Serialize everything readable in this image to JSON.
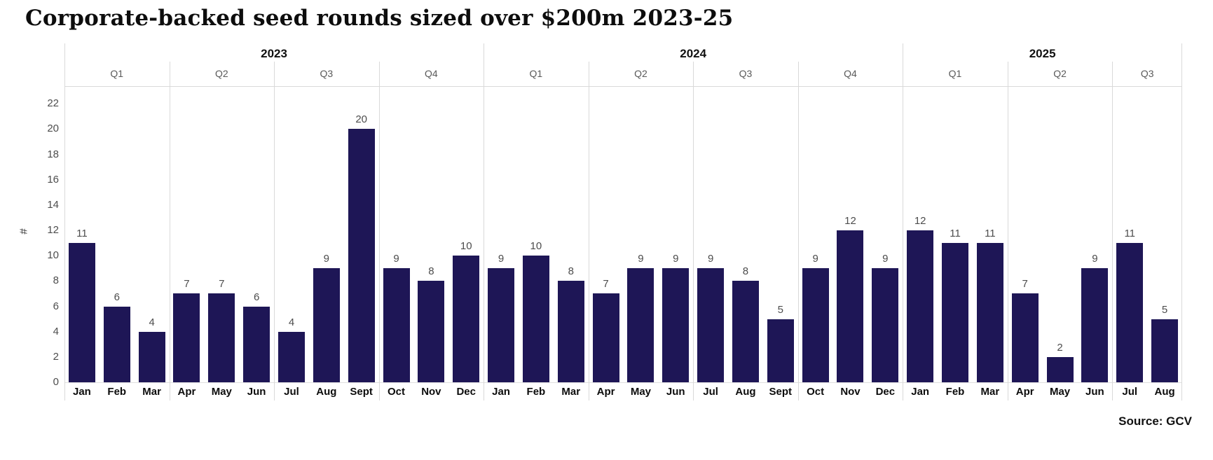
{
  "title": "Corporate-backed seed rounds sized over $200m 2023-25",
  "source": "Source: GCV",
  "chart_data": {
    "type": "bar",
    "title": "Corporate-backed seed rounds sized over $200m 2023-25",
    "xlabel": "",
    "ylabel": "#",
    "ylim": [
      0,
      23.4
    ],
    "yticks": [
      0,
      2,
      4,
      6,
      8,
      10,
      12,
      14,
      16,
      18,
      20,
      22
    ],
    "grid": "vertical-quarter-dividers-only",
    "legend": "none",
    "bar_color": "#1e1656",
    "divider_color": "#d9d9d9",
    "groups": [
      {
        "year": "2023",
        "quarters": [
          {
            "label": "Q1",
            "months": [
              "Jan",
              "Feb",
              "Mar"
            ],
            "values": [
              11,
              6,
              4
            ]
          },
          {
            "label": "Q2",
            "months": [
              "Apr",
              "May",
              "Jun"
            ],
            "values": [
              7,
              7,
              6
            ]
          },
          {
            "label": "Q3",
            "months": [
              "Jul",
              "Aug",
              "Sept"
            ],
            "values": [
              4,
              9,
              20
            ]
          },
          {
            "label": "Q4",
            "months": [
              "Oct",
              "Nov",
              "Dec"
            ],
            "values": [
              9,
              8,
              10
            ]
          }
        ]
      },
      {
        "year": "2024",
        "quarters": [
          {
            "label": "Q1",
            "months": [
              "Jan",
              "Feb",
              "Mar"
            ],
            "values": [
              9,
              10,
              8
            ]
          },
          {
            "label": "Q2",
            "months": [
              "Apr",
              "May",
              "Jun"
            ],
            "values": [
              7,
              9,
              9
            ]
          },
          {
            "label": "Q3",
            "months": [
              "Jul",
              "Aug",
              "Sept"
            ],
            "values": [
              9,
              8,
              5
            ]
          },
          {
            "label": "Q4",
            "months": [
              "Oct",
              "Nov",
              "Dec"
            ],
            "values": [
              9,
              12,
              9
            ]
          }
        ]
      },
      {
        "year": "2025",
        "quarters": [
          {
            "label": "Q1",
            "months": [
              "Jan",
              "Feb",
              "Mar"
            ],
            "values": [
              12,
              11,
              11
            ]
          },
          {
            "label": "Q2",
            "months": [
              "Apr",
              "May",
              "Jun"
            ],
            "values": [
              7,
              2,
              9
            ]
          },
          {
            "label": "Q3",
            "months": [
              "Jul",
              "Aug"
            ],
            "values": [
              11,
              5
            ]
          }
        ]
      }
    ]
  }
}
